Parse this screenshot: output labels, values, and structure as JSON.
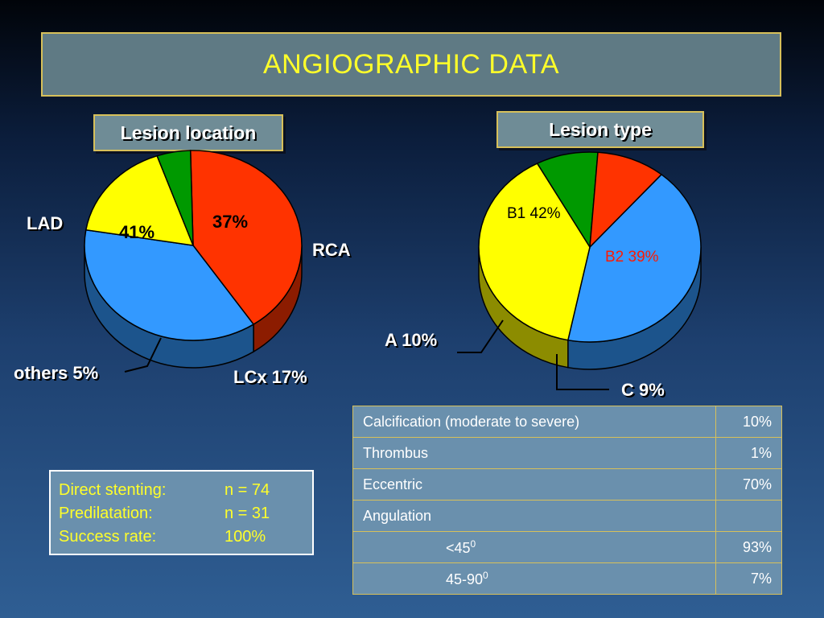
{
  "title": "ANGIOGRAPHIC DATA",
  "chart_data": [
    {
      "type": "pie",
      "title": "Lesion location",
      "slices": [
        {
          "label": "LAD",
          "value": 41,
          "value_label": "41%",
          "color": "#ff3300"
        },
        {
          "label": "RCA",
          "value": 37,
          "value_label": "37%",
          "color": "#3399ff"
        },
        {
          "label": "LCx 17%",
          "value": 17,
          "color": "#ffff00"
        },
        {
          "label": "others 5%",
          "value": 5,
          "color": "#009900"
        }
      ]
    },
    {
      "type": "pie",
      "title": "Lesion type",
      "slices": [
        {
          "label": "B1 42%",
          "value": 42,
          "color": "#3399ff"
        },
        {
          "label": "B2 39%",
          "value": 39,
          "color": "#ffff00"
        },
        {
          "label": "C 9%",
          "value": 9,
          "color": "#009900"
        },
        {
          "label": "A 10%",
          "value": 10,
          "color": "#ff3300"
        }
      ]
    }
  ],
  "table": {
    "rows": [
      {
        "label": "Calcification (moderate to severe)",
        "value": "10%"
      },
      {
        "label": "Thrombus",
        "value": "1%"
      },
      {
        "label": "Eccentric",
        "value": "70%"
      },
      {
        "label": "Angulation",
        "value": ""
      },
      {
        "label": "<45",
        "sup": "0",
        "value": "93%",
        "indent": true
      },
      {
        "label": "45-90",
        "sup": "0",
        "value": "7%",
        "indent": true
      }
    ]
  },
  "stenting": [
    {
      "label": "Direct stenting:",
      "value": "n = 74"
    },
    {
      "label": "Predilatation:",
      "value": "n = 31"
    },
    {
      "label": "Success rate:",
      "value": "100%"
    }
  ]
}
